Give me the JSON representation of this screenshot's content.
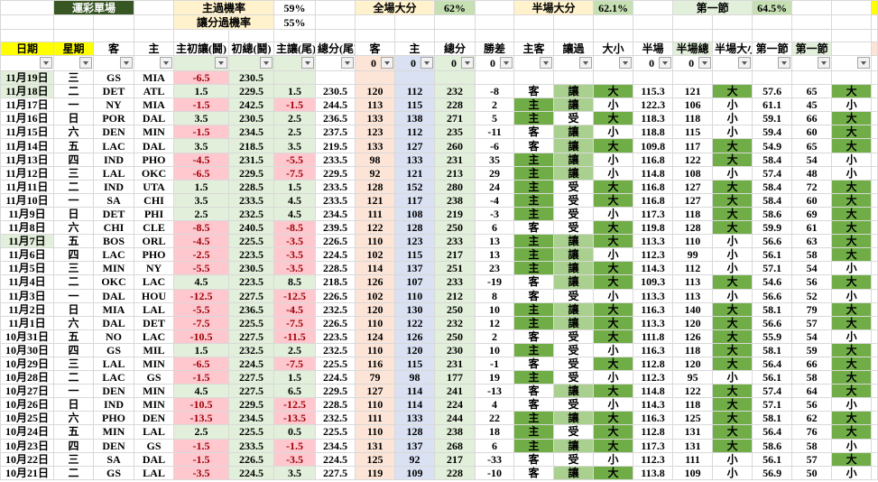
{
  "summary": {
    "title": "運彩單場",
    "home_pass_label": "主過機率",
    "home_pass_value": "59%",
    "spread_pass_label": "讓分過機率",
    "spread_pass_value": "55%",
    "full_over_label": "全場大分",
    "full_over_value": "62%",
    "half_over_label": "半場大分",
    "half_over_value": "62.1%",
    "q1_label": "第一節",
    "q1_value": "64.5%"
  },
  "columns": [
    "日期",
    "星期",
    "客",
    "主",
    "主初讓(鬪)",
    "初總(鬪)",
    "主讓(尾)",
    "總分(尾)",
    "客",
    "主",
    "總分",
    "勝差",
    "主客",
    "讓過",
    "大小",
    "半場",
    "半場總",
    "半場大小",
    "第一節",
    "第一節",
    ""
  ],
  "filters": [
    "",
    "",
    "",
    "",
    "",
    "",
    "",
    "",
    "0",
    "0",
    "0",
    "0",
    "",
    "",
    "",
    "0",
    "0",
    "",
    "",
    "",
    ""
  ],
  "colors": {
    "highlight_dark": "#70ad47",
    "highlight_light": "#a9d08e",
    "negative_bg": "#ffc7ce",
    "negative_text": "#9c0006",
    "title_bg": "#375623"
  },
  "rows": [
    [
      "11月19日",
      "三",
      "GS",
      "MIA",
      "-6.5",
      "230.5",
      "",
      "",
      "",
      "",
      "",
      "",
      "",
      "",
      "",
      "",
      "",
      "",
      "",
      "",
      ""
    ],
    [
      "11月18日",
      "二",
      "DET",
      "ATL",
      "1.5",
      "229.5",
      "1.5",
      "230.5",
      "120",
      "112",
      "232",
      "-8",
      "客",
      "讓",
      "大",
      "115.3",
      "121",
      "大",
      "57.6",
      "65",
      "大"
    ],
    [
      "11月17日",
      "一",
      "NY",
      "MIA",
      "-1.5",
      "242.5",
      "-1.5",
      "244.5",
      "113",
      "115",
      "228",
      "2",
      "主",
      "讓",
      "小",
      "122.3",
      "106",
      "小",
      "61.1",
      "45",
      "小"
    ],
    [
      "11月16日",
      "日",
      "POR",
      "DAL",
      "3.5",
      "230.5",
      "2.5",
      "236.5",
      "133",
      "138",
      "271",
      "5",
      "主",
      "受",
      "大",
      "118.3",
      "118",
      "小",
      "59.1",
      "66",
      "大"
    ],
    [
      "11月15日",
      "六",
      "DEN",
      "MIN",
      "-1.5",
      "234.5",
      "2.5",
      "237.5",
      "123",
      "112",
      "235",
      "-11",
      "客",
      "讓",
      "小",
      "118.8",
      "115",
      "小",
      "59.4",
      "60",
      "大"
    ],
    [
      "11月14日",
      "五",
      "LAC",
      "DAL",
      "3.5",
      "218.5",
      "3.5",
      "219.5",
      "133",
      "127",
      "260",
      "-6",
      "客",
      "讓",
      "大",
      "109.8",
      "117",
      "大",
      "54.9",
      "65",
      "大"
    ],
    [
      "11月13日",
      "四",
      "IND",
      "PHO",
      "-4.5",
      "231.5",
      "-5.5",
      "233.5",
      "98",
      "133",
      "231",
      "35",
      "主",
      "讓",
      "小",
      "116.8",
      "122",
      "大",
      "58.4",
      "54",
      "小"
    ],
    [
      "11月12日",
      "三",
      "LAL",
      "OKC",
      "-6.5",
      "229.5",
      "-7.5",
      "229.5",
      "92",
      "121",
      "213",
      "29",
      "主",
      "讓",
      "小",
      "114.8",
      "108",
      "小",
      "57.4",
      "48",
      "小"
    ],
    [
      "11月11日",
      "二",
      "IND",
      "UTA",
      "1.5",
      "228.5",
      "1.5",
      "233.5",
      "128",
      "152",
      "280",
      "24",
      "主",
      "受",
      "大",
      "116.8",
      "127",
      "大",
      "58.4",
      "72",
      "大"
    ],
    [
      "11月10日",
      "一",
      "SA",
      "CHI",
      "3.5",
      "233.5",
      "4.5",
      "233.5",
      "121",
      "117",
      "238",
      "-4",
      "主",
      "受",
      "大",
      "116.8",
      "127",
      "大",
      "58.4",
      "60",
      "大"
    ],
    [
      "11月9日",
      "日",
      "DET",
      "PHI",
      "2.5",
      "232.5",
      "4.5",
      "234.5",
      "111",
      "108",
      "219",
      "-3",
      "主",
      "受",
      "小",
      "117.3",
      "118",
      "大",
      "58.6",
      "69",
      "大"
    ],
    [
      "11月8日",
      "六",
      "CHI",
      "CLE",
      "-8.5",
      "240.5",
      "-8.5",
      "239.5",
      "122",
      "128",
      "250",
      "6",
      "客",
      "受",
      "大",
      "119.8",
      "128",
      "大",
      "59.9",
      "61",
      "大"
    ],
    [
      "11月7日",
      "五",
      "BOS",
      "ORL",
      "-4.5",
      "225.5",
      "-3.5",
      "226.5",
      "110",
      "123",
      "233",
      "13",
      "主",
      "讓",
      "大",
      "113.3",
      "110",
      "小",
      "56.6",
      "63",
      "大"
    ],
    [
      "11月6日",
      "四",
      "LAC",
      "PHO",
      "-2.5",
      "223.5",
      "-3.5",
      "224.5",
      "102",
      "115",
      "217",
      "13",
      "主",
      "讓",
      "小",
      "112.3",
      "99",
      "小",
      "56.1",
      "58",
      "大"
    ],
    [
      "11月5日",
      "三",
      "MIN",
      "NY",
      "-5.5",
      "230.5",
      "-3.5",
      "228.5",
      "114",
      "137",
      "251",
      "23",
      "主",
      "讓",
      "大",
      "114.3",
      "112",
      "小",
      "57.1",
      "54",
      "小"
    ],
    [
      "11月4日",
      "二",
      "OKC",
      "LAC",
      "4.5",
      "223.5",
      "8.5",
      "218.5",
      "126",
      "107",
      "233",
      "-19",
      "客",
      "讓",
      "大",
      "109.3",
      "113",
      "大",
      "54.6",
      "56",
      "大"
    ],
    [
      "11月3日",
      "一",
      "DAL",
      "HOU",
      "-12.5",
      "227.5",
      "-12.5",
      "226.5",
      "102",
      "110",
      "212",
      "8",
      "客",
      "受",
      "小",
      "113.3",
      "113",
      "小",
      "56.6",
      "52",
      "小"
    ],
    [
      "11月2日",
      "日",
      "MIA",
      "LAL",
      "-5.5",
      "236.5",
      "-4.5",
      "232.5",
      "120",
      "130",
      "250",
      "10",
      "主",
      "讓",
      "大",
      "116.3",
      "140",
      "大",
      "58.1",
      "79",
      "大"
    ],
    [
      "11月1日",
      "六",
      "DAL",
      "DET",
      "-7.5",
      "225.5",
      "-7.5",
      "226.5",
      "110",
      "122",
      "232",
      "12",
      "主",
      "讓",
      "大",
      "113.3",
      "120",
      "大",
      "56.6",
      "57",
      "大"
    ],
    [
      "10月31日",
      "五",
      "NO",
      "LAC",
      "-10.5",
      "227.5",
      "-11.5",
      "223.5",
      "124",
      "126",
      "250",
      "2",
      "客",
      "受",
      "大",
      "111.8",
      "126",
      "大",
      "55.9",
      "54",
      "小"
    ],
    [
      "10月30日",
      "四",
      "GS",
      "MIL",
      "1.5",
      "232.5",
      "2.5",
      "232.5",
      "110",
      "120",
      "230",
      "10",
      "主",
      "受",
      "小",
      "116.3",
      "118",
      "大",
      "58.1",
      "59",
      "大"
    ],
    [
      "10月29日",
      "三",
      "LAL",
      "MIN",
      "-6.5",
      "224.5",
      "-7.5",
      "225.5",
      "116",
      "115",
      "231",
      "-1",
      "客",
      "受",
      "大",
      "112.8",
      "120",
      "大",
      "56.4",
      "66",
      "大"
    ],
    [
      "10月28日",
      "二",
      "LAC",
      "GS",
      "-1.5",
      "227.5",
      "1.5",
      "224.5",
      "79",
      "98",
      "177",
      "19",
      "主",
      "受",
      "小",
      "112.3",
      "95",
      "小",
      "56.1",
      "58",
      "大"
    ],
    [
      "10月27日",
      "一",
      "DEN",
      "MIN",
      "4.5",
      "227.5",
      "6.5",
      "229.5",
      "127",
      "114",
      "241",
      "-13",
      "客",
      "讓",
      "大",
      "114.8",
      "122",
      "大",
      "57.4",
      "64",
      "大"
    ],
    [
      "10月26日",
      "日",
      "IND",
      "MIN",
      "-10.5",
      "229.5",
      "-12.5",
      "228.5",
      "110",
      "114",
      "224",
      "4",
      "客",
      "受",
      "小",
      "114.3",
      "118",
      "大",
      "57.1",
      "56",
      "小"
    ],
    [
      "10月25日",
      "六",
      "PHO",
      "DEN",
      "-13.5",
      "234.5",
      "-13.5",
      "232.5",
      "111",
      "133",
      "244",
      "22",
      "主",
      "讓",
      "大",
      "116.3",
      "125",
      "大",
      "58.1",
      "62",
      "大"
    ],
    [
      "10月24日",
      "五",
      "MIN",
      "LAL",
      "2.5",
      "225.5",
      "0.5",
      "225.5",
      "110",
      "128",
      "238",
      "18",
      "主",
      "受",
      "大",
      "112.8",
      "131",
      "大",
      "56.4",
      "76",
      "大"
    ],
    [
      "10月23日",
      "四",
      "DEN",
      "GS",
      "-1.5",
      "233.5",
      "-1.5",
      "234.5",
      "131",
      "137",
      "268",
      "6",
      "主",
      "讓",
      "大",
      "117.3",
      "131",
      "大",
      "58.6",
      "58",
      "小"
    ],
    [
      "10月22日",
      "三",
      "SA",
      "DAL",
      "-1.5",
      "226.5",
      "-3.5",
      "224.5",
      "125",
      "92",
      "217",
      "-33",
      "客",
      "受",
      "小",
      "112.3",
      "111",
      "小",
      "56.1",
      "57",
      "大"
    ],
    [
      "10月21日",
      "二",
      "GS",
      "LAL",
      "-3.5",
      "224.5",
      "3.5",
      "227.5",
      "119",
      "109",
      "228",
      "-10",
      "客",
      "讓",
      "大",
      "113.8",
      "109",
      "小",
      "56.9",
      "50",
      "小"
    ]
  ]
}
